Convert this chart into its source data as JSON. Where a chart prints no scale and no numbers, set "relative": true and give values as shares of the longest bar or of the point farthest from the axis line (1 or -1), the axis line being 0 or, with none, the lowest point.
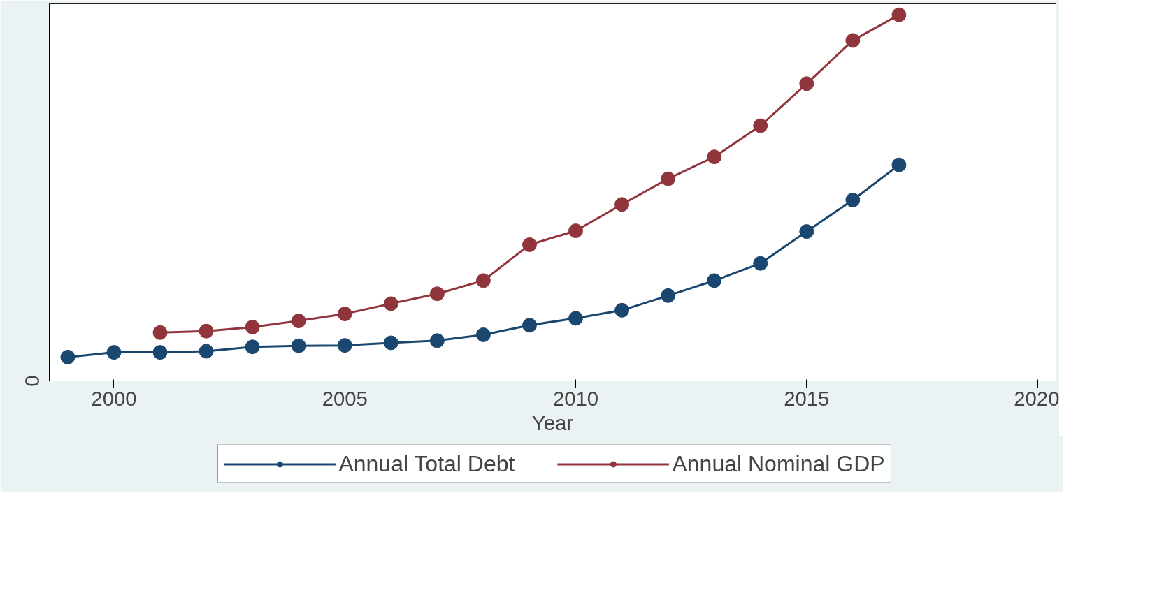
{
  "chart_data": {
    "type": "line",
    "relative": true,
    "xlabel": "Year",
    "xlim": [
      1998.6,
      2020.4
    ],
    "xticks": [
      2000,
      2005,
      2010,
      2015,
      2020
    ],
    "annotations": [
      "0"
    ],
    "marker": "circle",
    "grid": false,
    "legend": "bottom",
    "series": [
      {
        "name": "Annual Total Debt",
        "color": "#1a476f",
        "x": [
          1999,
          2000,
          2001,
          2002,
          2003,
          2004,
          2005,
          2006,
          2007,
          2008,
          2009,
          2010,
          2011,
          2012,
          2013,
          2014,
          2015,
          2016,
          2017
        ],
        "values": [
          0.065,
          0.078,
          0.078,
          0.081,
          0.093,
          0.096,
          0.097,
          0.104,
          0.11,
          0.126,
          0.152,
          0.171,
          0.193,
          0.233,
          0.274,
          0.321,
          0.408,
          0.494,
          0.59
        ]
      },
      {
        "name": "Annual Nominal GDP",
        "color": "#90353b",
        "x": [
          2001,
          2002,
          2003,
          2004,
          2005,
          2006,
          2007,
          2008,
          2009,
          2010,
          2011,
          2012,
          2013,
          2014,
          2015,
          2016,
          2017
        ],
        "values": [
          0.132,
          0.136,
          0.147,
          0.164,
          0.183,
          0.211,
          0.238,
          0.274,
          0.372,
          0.41,
          0.482,
          0.552,
          0.612,
          0.697,
          0.812,
          0.93,
          1.0
        ]
      }
    ]
  }
}
